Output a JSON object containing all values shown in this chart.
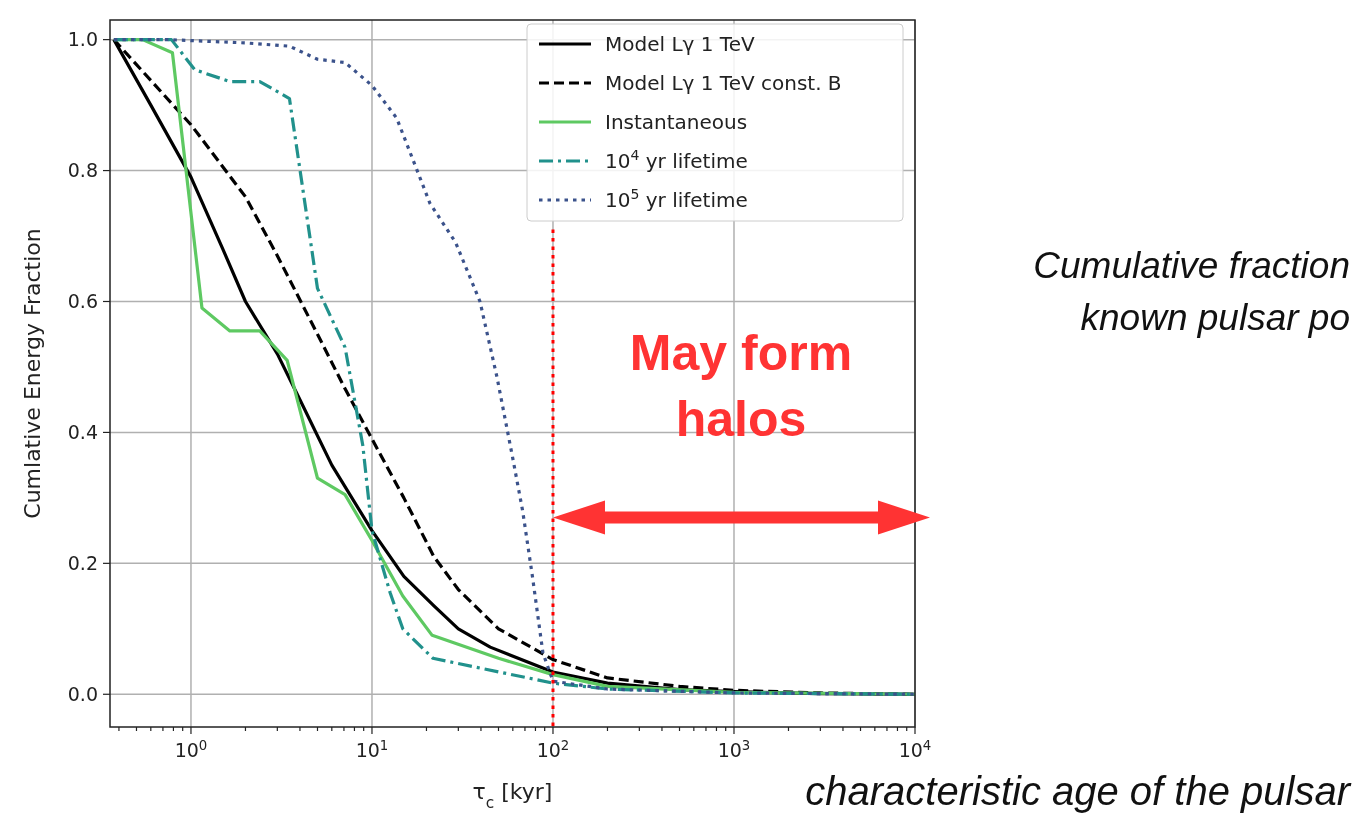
{
  "chart_data": {
    "type": "line",
    "xlabel": "τ$_{c}$ [kyr]",
    "ylabel": "Cumlative Energy Fraction",
    "log": "x",
    "grid": true,
    "legend": "top right",
    "xlim": [
      0.357,
      10000
    ],
    "ylim": [
      -0.05,
      1.03
    ],
    "xticks": [
      {
        "value": 0.4,
        "label": null
      },
      {
        "value": 0.5,
        "label": null
      },
      {
        "value": 0.6,
        "label": null
      },
      {
        "value": 0.7,
        "label": null
      },
      {
        "value": 0.8,
        "label": null
      },
      {
        "value": 0.9,
        "label": null
      },
      {
        "value": 1,
        "label": "10$^{0}$"
      },
      {
        "value": 2,
        "label": null
      },
      {
        "value": 3,
        "label": null
      },
      {
        "value": 4,
        "label": null
      },
      {
        "value": 5,
        "label": null
      },
      {
        "value": 6,
        "label": null
      },
      {
        "value": 7,
        "label": null
      },
      {
        "value": 8,
        "label": null
      },
      {
        "value": 9,
        "label": null
      },
      {
        "value": 10,
        "label": "10$^{1}$"
      },
      {
        "value": 20,
        "label": null
      },
      {
        "value": 30,
        "label": null
      },
      {
        "value": 40,
        "label": null
      },
      {
        "value": 50,
        "label": null
      },
      {
        "value": 60,
        "label": null
      },
      {
        "value": 70,
        "label": null
      },
      {
        "value": 80,
        "label": null
      },
      {
        "value": 90,
        "label": null
      },
      {
        "value": 100,
        "label": "10$^{2}$"
      },
      {
        "value": 200,
        "label": null
      },
      {
        "value": 300,
        "label": null
      },
      {
        "value": 400,
        "label": null
      },
      {
        "value": 500,
        "label": null
      },
      {
        "value": 600,
        "label": null
      },
      {
        "value": 700,
        "label": null
      },
      {
        "value": 800,
        "label": null
      },
      {
        "value": 900,
        "label": null
      },
      {
        "value": 1000,
        "label": "10$^{3}$"
      },
      {
        "value": 2000,
        "label": null
      },
      {
        "value": 3000,
        "label": null
      },
      {
        "value": 4000,
        "label": null
      },
      {
        "value": 5000,
        "label": null
      },
      {
        "value": 6000,
        "label": null
      },
      {
        "value": 7000,
        "label": null
      },
      {
        "value": 8000,
        "label": null
      },
      {
        "value": 9000,
        "label": null
      },
      {
        "value": 10000,
        "label": "10$^{4}$"
      }
    ],
    "yticks": [
      {
        "value": 0,
        "label": "0.0"
      },
      {
        "value": 0.2,
        "label": "0.2"
      },
      {
        "value": 0.4,
        "label": "0.4"
      },
      {
        "value": 0.6,
        "label": "0.6"
      },
      {
        "value": 0.8,
        "label": "0.8"
      },
      {
        "value": 1,
        "label": "1.0"
      }
    ],
    "series": [
      {
        "name": "Model Lγ 1 TeV",
        "color": "#000000",
        "line_style": "solid",
        "x": [
          0.375,
          0.6,
          1,
          1.5,
          2,
          3,
          4,
          6,
          10,
          15,
          22,
          30,
          45,
          100,
          200,
          500,
          1000,
          3000,
          10000
        ],
        "values": [
          1.0,
          0.9,
          0.79,
          0.68,
          0.6,
          0.52,
          0.45,
          0.35,
          0.25,
          0.18,
          0.135,
          0.1,
          0.072,
          0.034,
          0.017,
          0.007,
          0.004,
          0.001,
          0.0
        ]
      },
      {
        "name": "Model Lγ 1 TeV const. B",
        "color": "#000000",
        "line_style": "dashed",
        "x": [
          0.375,
          1,
          2,
          3,
          5,
          7,
          10,
          15,
          22,
          30,
          50,
          100,
          200,
          500,
          1000,
          3000,
          10000
        ],
        "values": [
          1.0,
          0.87,
          0.76,
          0.67,
          0.55,
          0.47,
          0.39,
          0.3,
          0.21,
          0.16,
          0.1,
          0.053,
          0.025,
          0.012,
          0.006,
          0.002,
          0.0
        ]
      },
      {
        "name": "Instantaneous",
        "color": "#5ec962",
        "line_style": "solid",
        "x": [
          0.375,
          0.54,
          0.79,
          1.15,
          1.64,
          2.4,
          3.4,
          5,
          7.1,
          10,
          14.8,
          21.5,
          50,
          100,
          200,
          1000,
          10000
        ],
        "values": [
          1.0,
          1.0,
          0.98,
          0.59,
          0.555,
          0.555,
          0.51,
          0.33,
          0.305,
          0.235,
          0.15,
          0.09,
          0.055,
          0.03,
          0.012,
          0.003,
          0.0
        ]
      },
      {
        "name": "10$^{4}$ yr lifetime",
        "color": "#21918c",
        "line_style": "dashdot",
        "x": [
          0.375,
          0.78,
          1.05,
          1.64,
          2.4,
          3.5,
          5,
          7.1,
          8.9,
          10,
          12.6,
          14.8,
          21.7,
          100,
          200,
          1000,
          10000
        ],
        "values": [
          1.0,
          1.0,
          0.954,
          0.936,
          0.936,
          0.91,
          0.62,
          0.53,
          0.38,
          0.25,
          0.155,
          0.1,
          0.055,
          0.017,
          0.008,
          0.002,
          0.0
        ]
      },
      {
        "name": "10$^{5}$ yr lifetime",
        "color": "#3b528b",
        "line_style": "dotted",
        "x": [
          0.375,
          0.75,
          2,
          3.5,
          5,
          7.1,
          10,
          13.7,
          20.9,
          29,
          39.5,
          49,
          60,
          68,
          77,
          88,
          100,
          200,
          1000,
          10000
        ],
        "values": [
          1.0,
          1.0,
          0.995,
          0.99,
          0.97,
          0.965,
          0.93,
          0.88,
          0.75,
          0.69,
          0.6,
          0.485,
          0.36,
          0.28,
          0.18,
          0.063,
          0.02,
          0.008,
          0.002,
          0.0
        ]
      }
    ],
    "ref_lines": [
      {
        "axis": "x",
        "value": 100,
        "color": "#ff0000",
        "line_style": "dotted"
      }
    ],
    "annotations": [
      "May form halos",
      "Cumulative fraction",
      "known pulsar po",
      "characteristic age of the pulsar"
    ]
  }
}
